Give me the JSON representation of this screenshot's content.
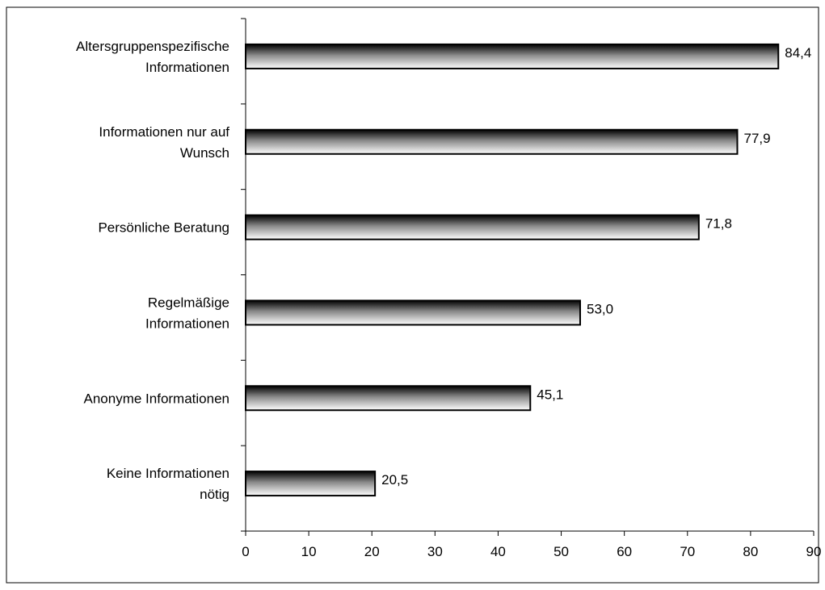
{
  "chart_data": {
    "type": "bar",
    "orientation": "horizontal",
    "title": "",
    "xlabel": "",
    "ylabel": "",
    "xlim": [
      0,
      90
    ],
    "x_ticks": [
      0,
      10,
      20,
      30,
      40,
      50,
      60,
      70,
      80,
      90
    ],
    "grid": false,
    "legend": "none",
    "categories": [
      [
        "Altersgruppenspezifische",
        "Informationen"
      ],
      [
        "Informationen nur auf",
        "Wunsch"
      ],
      [
        "Persönliche Beratung"
      ],
      [
        "Regelmäßige",
        "Informationen"
      ],
      [
        "Anonyme Informationen"
      ],
      [
        "Keine Informationen",
        "nötig"
      ]
    ],
    "values": [
      84.4,
      77.9,
      71.8,
      53.0,
      45.1,
      20.5
    ],
    "value_labels": [
      "84,4",
      "77,9",
      "71,8",
      "53,0",
      "45,1",
      "20,5"
    ],
    "bar_fill": "gradient black-to-white (top to bottom)"
  }
}
